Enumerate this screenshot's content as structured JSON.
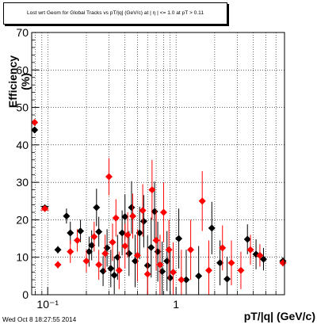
{
  "title": "Lost wrt Geom for Global Tracks vs pT/|q| (GeV/c) at |  η | <= 1.0 at pT > 0.11",
  "timestamp": "Wed Oct  8 18:27:55 2014",
  "colors": {
    "black_series": "#000000",
    "red_series": "#ff0000",
    "grid": "#000000"
  },
  "chart_data": {
    "type": "scatter",
    "title": "Lost wrt Geom for Global Tracks vs pT/|q| (GeV/c) at |  η | <= 1.0 at pT > 0.11",
    "xlabel": "pT/|q| (GeV/c)",
    "ylabel": "Efficiency (%)",
    "xscale": "log",
    "xlim": [
      0.075,
      7.0
    ],
    "ylim": [
      0,
      70
    ],
    "grid": true,
    "x_ticklabels": [
      "10⁻¹",
      "1"
    ],
    "y_ticklabels": [
      "0",
      "10",
      "20",
      "30",
      "40",
      "50",
      "60",
      "70"
    ],
    "series": [
      {
        "color": "black",
        "marker": "diamond",
        "points": [
          {
            "x": 0.079,
            "y": 44.0,
            "err": 0
          },
          {
            "x": 0.095,
            "y": 23.2,
            "err": 0.8
          },
          {
            "x": 0.12,
            "y": 12.0,
            "err": 1.0
          },
          {
            "x": 0.14,
            "y": 21.0,
            "err": 2.0
          },
          {
            "x": 0.15,
            "y": 16.5,
            "err": 3.0
          },
          {
            "x": 0.18,
            "y": 17.0,
            "err": 3.0
          },
          {
            "x": 0.21,
            "y": 11.5,
            "err": 4.0
          },
          {
            "x": 0.22,
            "y": 13.2,
            "err": 4.0
          },
          {
            "x": 0.24,
            "y": 23.3,
            "err": 5.0
          },
          {
            "x": 0.25,
            "y": 16.8,
            "err": 4.0
          },
          {
            "x": 0.27,
            "y": 6.3,
            "err": 4.0
          },
          {
            "x": 0.29,
            "y": 12.5,
            "err": 5.0
          },
          {
            "x": 0.31,
            "y": 7.0,
            "err": 5.0
          },
          {
            "x": 0.33,
            "y": 5.2,
            "err": 5.0
          },
          {
            "x": 0.35,
            "y": 10.0,
            "err": 6.0
          },
          {
            "x": 0.38,
            "y": 16.5,
            "err": 6.0
          },
          {
            "x": 0.4,
            "y": 20.8,
            "err": 6.0
          },
          {
            "x": 0.43,
            "y": 11.0,
            "err": 6.0
          },
          {
            "x": 0.45,
            "y": 23.3,
            "err": 7.0
          },
          {
            "x": 0.48,
            "y": 9.0,
            "err": 7.0
          },
          {
            "x": 0.52,
            "y": 16.5,
            "err": 7.0
          },
          {
            "x": 0.56,
            "y": 19.6,
            "err": 7.0
          },
          {
            "x": 0.6,
            "y": 7.8,
            "err": 8.0
          },
          {
            "x": 0.64,
            "y": 12.6,
            "err": 8.0
          },
          {
            "x": 0.68,
            "y": 22.2,
            "err": 8.0
          },
          {
            "x": 0.72,
            "y": 11.5,
            "err": 8.0
          },
          {
            "x": 0.78,
            "y": 6.2,
            "err": 8.0
          },
          {
            "x": 0.85,
            "y": 9.0,
            "err": 8.0
          },
          {
            "x": 0.9,
            "y": 4.5,
            "err": 8.0
          },
          {
            "x": 1.05,
            "y": 15.0,
            "err": 8.0
          },
          {
            "x": 1.2,
            "y": 4.0,
            "err": 8.0
          },
          {
            "x": 1.5,
            "y": 5.0,
            "err": 8.0
          },
          {
            "x": 1.9,
            "y": 17.8,
            "err": 7.0
          },
          {
            "x": 2.2,
            "y": 8.5,
            "err": 6.0
          },
          {
            "x": 2.5,
            "y": 4.2,
            "err": 6.0
          },
          {
            "x": 3.6,
            "y": 14.8,
            "err": 4.0
          },
          {
            "x": 4.2,
            "y": 10.8,
            "err": 4.0
          },
          {
            "x": 4.8,
            "y": 9.5,
            "err": 3.0
          },
          {
            "x": 6.8,
            "y": 9.0,
            "err": 1.0
          }
        ]
      },
      {
        "color": "red",
        "marker": "diamond",
        "points": [
          {
            "x": 0.079,
            "y": 46.0,
            "err": 0
          },
          {
            "x": 0.095,
            "y": 23.0,
            "err": 0.8
          },
          {
            "x": 0.12,
            "y": 8.0,
            "err": 1.0
          },
          {
            "x": 0.15,
            "y": 11.5,
            "err": 3.0
          },
          {
            "x": 0.17,
            "y": 14.5,
            "err": 3.0
          },
          {
            "x": 0.2,
            "y": 9.0,
            "err": 3.0
          },
          {
            "x": 0.23,
            "y": 15.5,
            "err": 4.0
          },
          {
            "x": 0.25,
            "y": 8.0,
            "err": 4.0
          },
          {
            "x": 0.28,
            "y": 11.0,
            "err": 5.0
          },
          {
            "x": 0.3,
            "y": 31.5,
            "err": 5.0
          },
          {
            "x": 0.32,
            "y": 14.0,
            "err": 5.0
          },
          {
            "x": 0.34,
            "y": 20.5,
            "err": 5.0
          },
          {
            "x": 0.36,
            "y": 6.5,
            "err": 5.0
          },
          {
            "x": 0.4,
            "y": 13.0,
            "err": 6.0
          },
          {
            "x": 0.42,
            "y": 16.0,
            "err": 6.0
          },
          {
            "x": 0.46,
            "y": 21.0,
            "err": 6.0
          },
          {
            "x": 0.5,
            "y": 10.5,
            "err": 7.0
          },
          {
            "x": 0.55,
            "y": 22.5,
            "err": 7.0
          },
          {
            "x": 0.6,
            "y": 5.5,
            "err": 7.0
          },
          {
            "x": 0.65,
            "y": 28.0,
            "err": 8.0
          },
          {
            "x": 0.7,
            "y": 14.5,
            "err": 8.0
          },
          {
            "x": 0.75,
            "y": 8.0,
            "err": 8.0
          },
          {
            "x": 0.8,
            "y": 22.0,
            "err": 8.0
          },
          {
            "x": 0.88,
            "y": 12.0,
            "err": 8.0
          },
          {
            "x": 0.95,
            "y": 6.0,
            "err": 8.0
          },
          {
            "x": 1.1,
            "y": 4.0,
            "err": 8.0
          },
          {
            "x": 1.3,
            "y": 12.0,
            "err": 8.0
          },
          {
            "x": 1.6,
            "y": 25.0,
            "err": 8.0
          },
          {
            "x": 1.8,
            "y": 6.5,
            "err": 8.0
          },
          {
            "x": 2.3,
            "y": 12.5,
            "err": 6.0
          },
          {
            "x": 2.7,
            "y": 8.5,
            "err": 6.0
          },
          {
            "x": 3.2,
            "y": 6.5,
            "err": 5.0
          },
          {
            "x": 3.8,
            "y": 12.0,
            "err": 4.0
          },
          {
            "x": 4.5,
            "y": 10.5,
            "err": 3.0
          },
          {
            "x": 6.8,
            "y": 8.5,
            "err": 1.0
          }
        ]
      }
    ]
  }
}
